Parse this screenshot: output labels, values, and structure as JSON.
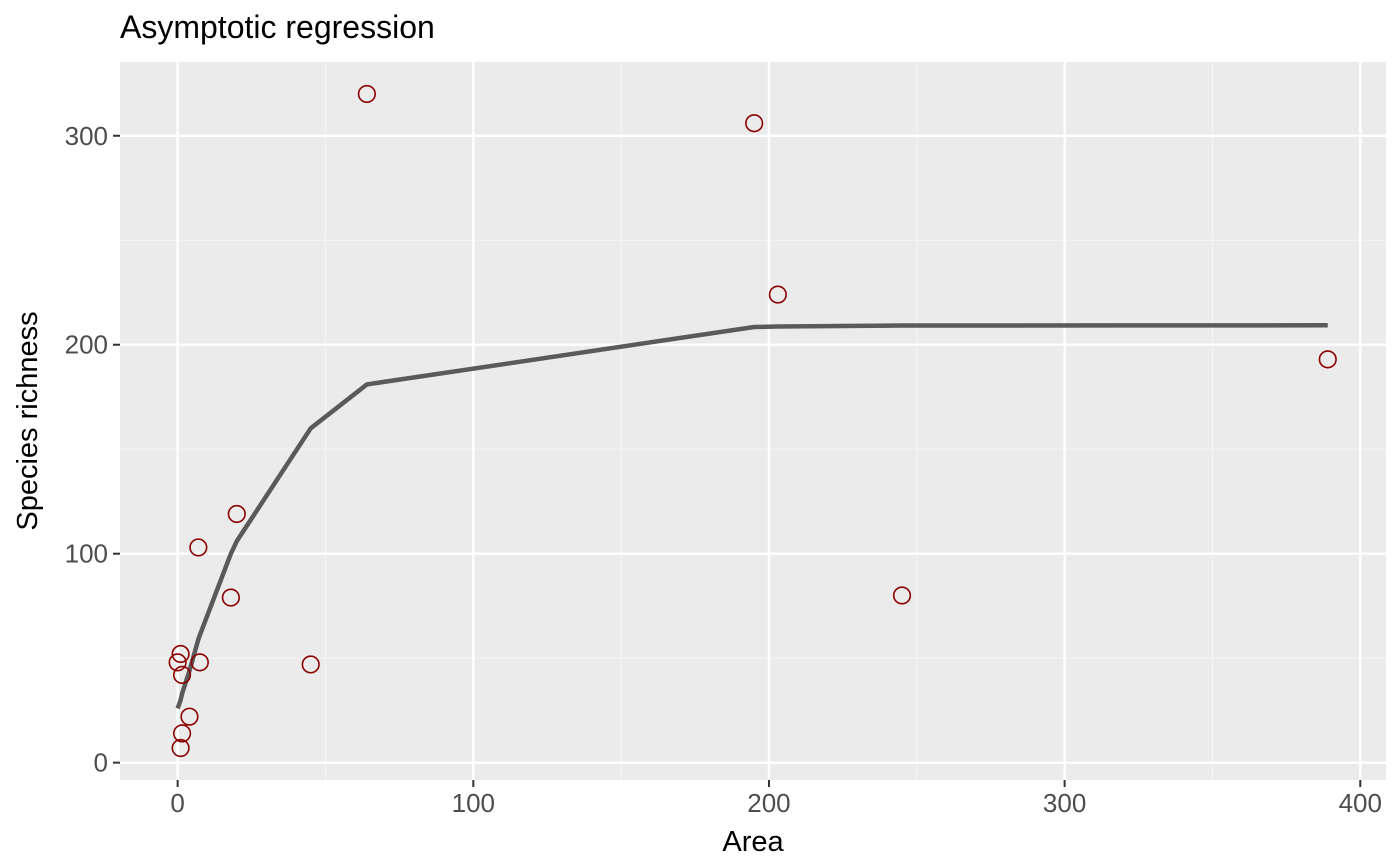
{
  "chart_data": {
    "type": "scatter",
    "title": "Asymptotic regression",
    "xlabel": "Area",
    "ylabel": "Species richness",
    "xlim": [
      -19.5,
      408.7
    ],
    "ylim": [
      -8.3,
      335.3
    ],
    "x_ticks": [
      0,
      100,
      200,
      300,
      400
    ],
    "x_tick_labels": [
      "0",
      "100",
      "200",
      "300",
      "400"
    ],
    "x_minor_ticks": [
      50,
      150,
      250,
      350
    ],
    "y_ticks": [
      0,
      100,
      200,
      300
    ],
    "y_tick_labels": [
      "0",
      "100",
      "200",
      "300"
    ],
    "y_minor_ticks": [
      50,
      150,
      250
    ],
    "grid": true,
    "legend": "none",
    "colors": {
      "panel": "#ebebeb",
      "grid_major": "#ffffff",
      "grid_minor": "#f5f5f5",
      "points": "#8b0000",
      "fit_line": "#5a5a5a"
    },
    "points": [
      {
        "x": 0.0,
        "y": 48
      },
      {
        "x": 1.0,
        "y": 52
      },
      {
        "x": 1.5,
        "y": 42
      },
      {
        "x": 1.5,
        "y": 14
      },
      {
        "x": 1.0,
        "y": 7
      },
      {
        "x": 4.0,
        "y": 22
      },
      {
        "x": 7.5,
        "y": 48
      },
      {
        "x": 7.0,
        "y": 103
      },
      {
        "x": 18.0,
        "y": 79
      },
      {
        "x": 20.0,
        "y": 119
      },
      {
        "x": 45.0,
        "y": 47
      },
      {
        "x": 64.0,
        "y": 320
      },
      {
        "x": 195.0,
        "y": 306
      },
      {
        "x": 203.0,
        "y": 224
      },
      {
        "x": 245.0,
        "y": 80
      },
      {
        "x": 389.0,
        "y": 193
      }
    ],
    "fit_line": [
      {
        "x": 0.0,
        "y": 26
      },
      {
        "x": 1.0,
        "y": 30
      },
      {
        "x": 1.5,
        "y": 33
      },
      {
        "x": 4.0,
        "y": 44
      },
      {
        "x": 7.0,
        "y": 59
      },
      {
        "x": 7.5,
        "y": 61
      },
      {
        "x": 18.0,
        "y": 100
      },
      {
        "x": 20.0,
        "y": 106
      },
      {
        "x": 45.0,
        "y": 160
      },
      {
        "x": 64.0,
        "y": 181
      },
      {
        "x": 195.0,
        "y": 208.5
      },
      {
        "x": 203.0,
        "y": 208.7
      },
      {
        "x": 245.0,
        "y": 209.2
      },
      {
        "x": 389.0,
        "y": 209.3
      }
    ]
  }
}
